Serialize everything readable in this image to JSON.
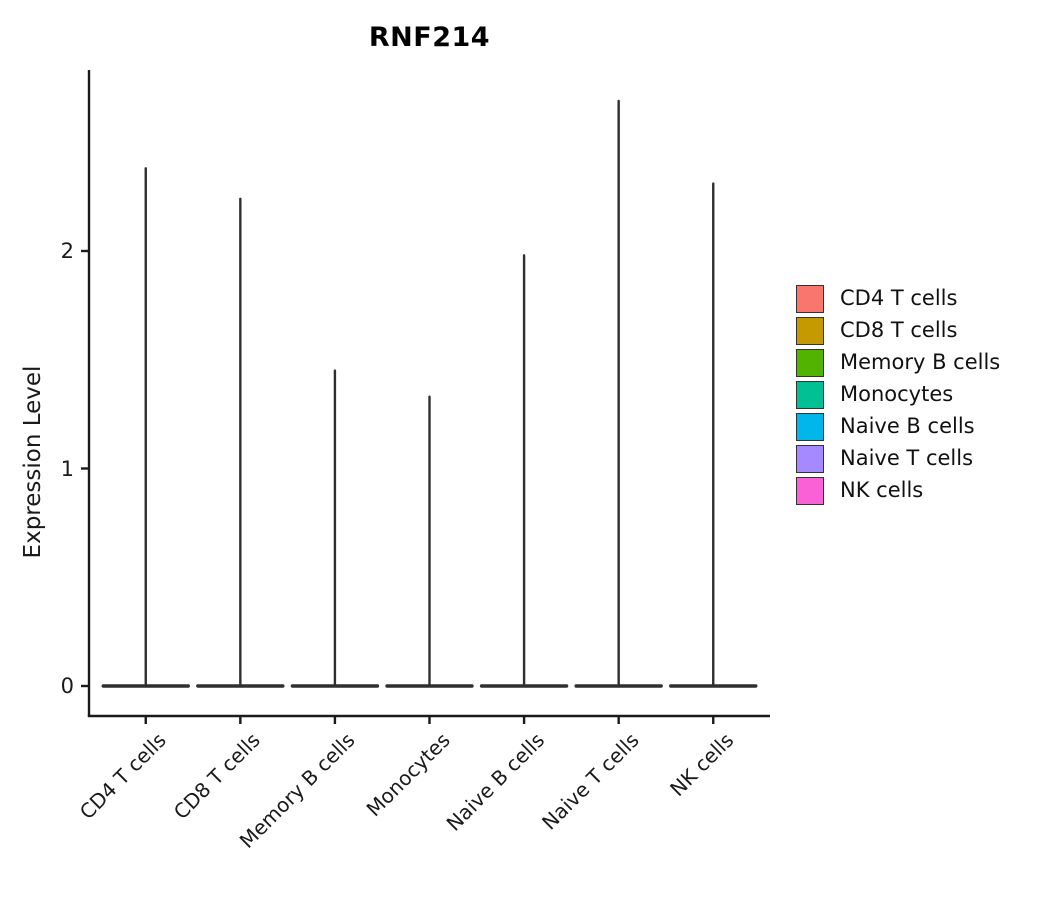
{
  "chart_data": {
    "type": "violin",
    "title": "RNF214",
    "ylabel": "Expression Level",
    "xlabel": "",
    "categories": [
      "CD4 T cells",
      "CD8 T cells",
      "Memory B cells",
      "Monocytes",
      "Naive B cells",
      "Naive T cells",
      "NK cells"
    ],
    "series": [
      {
        "name": "CD4 T cells",
        "color": "#F8766D",
        "max_expression": 2.38
      },
      {
        "name": "CD8 T cells",
        "color": "#C49A00",
        "max_expression": 2.24
      },
      {
        "name": "Memory B cells",
        "color": "#53B400",
        "max_expression": 1.45
      },
      {
        "name": "Monocytes",
        "color": "#00C094",
        "max_expression": 1.33
      },
      {
        "name": "Naive B cells",
        "color": "#00B6EB",
        "max_expression": 1.98
      },
      {
        "name": "Naive T cells",
        "color": "#A58AFF",
        "max_expression": 2.69
      },
      {
        "name": "NK cells",
        "color": "#FB61D7",
        "max_expression": 2.31
      }
    ],
    "distribution_note": "Each violin's density is concentrated at 0 (wide flat base) with a thin spike reaching max_expression",
    "yticks": [
      0,
      1,
      2
    ],
    "ylim": [
      0,
      2.85
    ],
    "legend_position": "right",
    "legend_labels": [
      "CD4 T cells",
      "CD8 T cells",
      "Memory B cells",
      "Monocytes",
      "Naive B cells",
      "Naive T cells",
      "NK cells"
    ],
    "axis_color": "#1a1a1a",
    "violin_outline_color": "#2f2f2f"
  }
}
